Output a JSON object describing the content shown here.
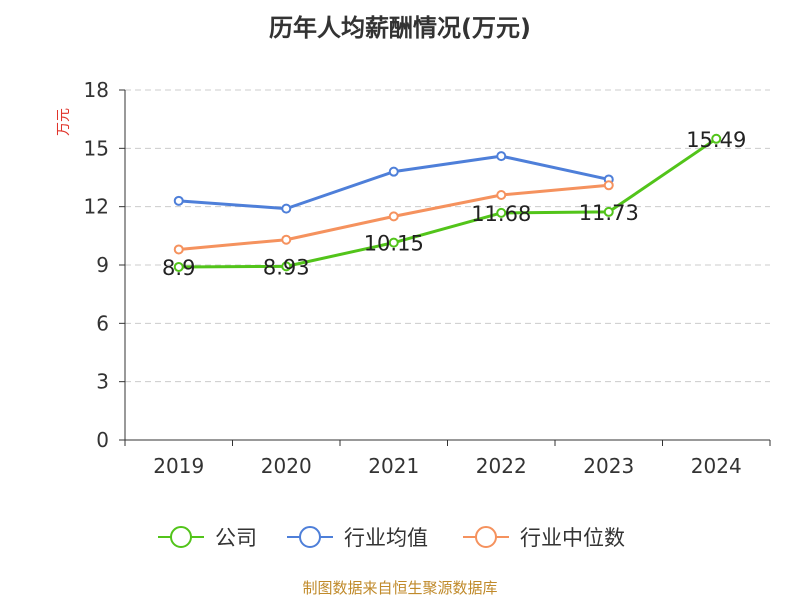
{
  "title": "历年人均薪酬情况(万元)",
  "footer": "制图数据来自恒生聚源数据库",
  "chart_data": {
    "type": "line",
    "title": "历年人均薪酬情况(万元)",
    "ylabel": "万元",
    "xlabel": "",
    "categories": [
      "2019",
      "2020",
      "2021",
      "2022",
      "2023",
      "2024"
    ],
    "ylim": [
      0,
      18
    ],
    "yticks": [
      0,
      3,
      6,
      9,
      12,
      15,
      18
    ],
    "grid": true,
    "legend_position": "bottom",
    "series": [
      {
        "name": "公司",
        "color": "#52c41a",
        "values": [
          8.9,
          8.93,
          10.15,
          11.68,
          11.73,
          15.49
        ],
        "labels": [
          "8.9",
          "8.93",
          "10.15",
          "11.68",
          "11.73",
          "15.49"
        ]
      },
      {
        "name": "行业均值",
        "color": "#4e7fd9",
        "values": [
          12.3,
          11.9,
          13.8,
          14.6,
          13.4,
          null
        ]
      },
      {
        "name": "行业中位数",
        "color": "#f5925e",
        "values": [
          9.8,
          10.3,
          11.5,
          12.6,
          13.1,
          null
        ]
      }
    ]
  }
}
